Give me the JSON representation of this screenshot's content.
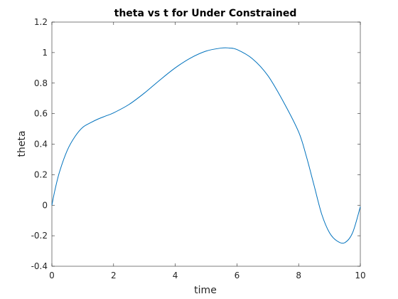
{
  "chart_data": {
    "type": "line",
    "title": "theta vs t for Under Constrained",
    "xlabel": "time",
    "ylabel": "theta",
    "xlim": [
      0,
      10
    ],
    "ylim": [
      -0.4,
      1.2
    ],
    "xticks": [
      "0",
      "2",
      "4",
      "6",
      "8",
      "10"
    ],
    "yticks": [
      "-0.4",
      "-0.2",
      "0",
      "0.2",
      "0.4",
      "0.6",
      "0.8",
      "1",
      "1.2"
    ],
    "grid": false,
    "box": true,
    "line_color": "#0072BD",
    "series": [
      {
        "x": [
          0,
          0.1,
          0.25,
          0.5,
          0.75,
          1.0,
          1.25,
          1.5,
          1.75,
          2.0,
          2.5,
          3.0,
          3.5,
          4.0,
          4.5,
          5.0,
          5.5,
          5.75,
          6.0,
          6.5,
          7.0,
          7.5,
          8.0,
          8.25,
          8.5,
          8.75,
          9.0,
          9.25,
          9.5,
          9.75,
          10.0
        ],
        "y": [
          0.0,
          0.1,
          0.22,
          0.36,
          0.45,
          0.51,
          0.54,
          0.565,
          0.585,
          0.605,
          0.66,
          0.735,
          0.82,
          0.9,
          0.965,
          1.01,
          1.03,
          1.03,
          1.02,
          0.96,
          0.85,
          0.68,
          0.48,
          0.32,
          0.13,
          -0.06,
          -0.18,
          -0.235,
          -0.245,
          -0.18,
          -0.01
        ]
      }
    ]
  }
}
